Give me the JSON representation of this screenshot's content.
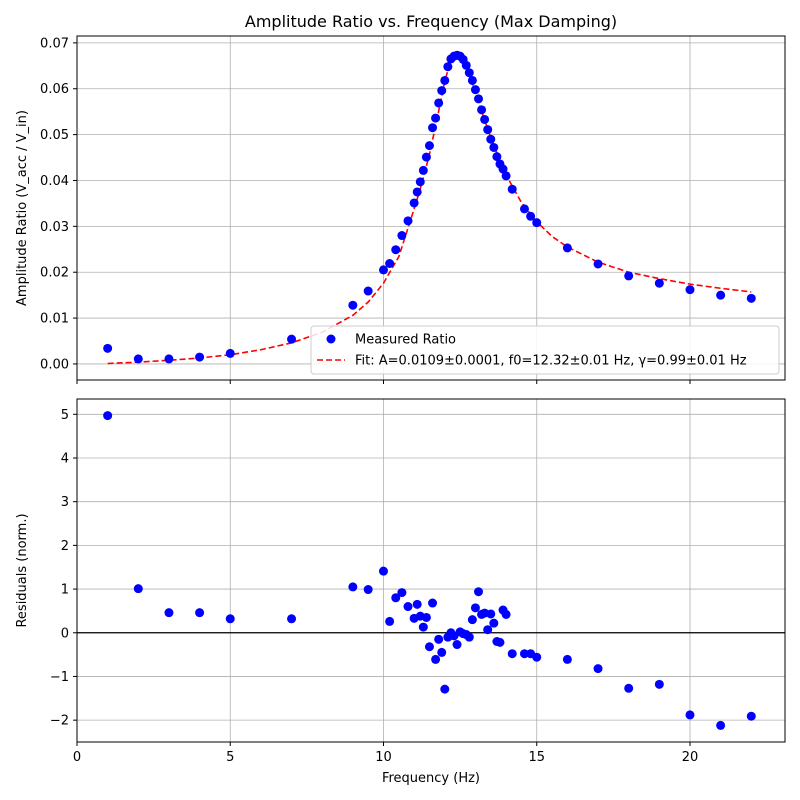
{
  "chart_data": [
    {
      "type": "scatter",
      "title": "Amplitude Ratio vs. Frequency (Max Damping)",
      "xlabel": "",
      "ylabel": "Amplitude Ratio (V_acc / V_in)",
      "xlim": [
        0,
        23.1
      ],
      "ylim": [
        -0.0035,
        0.0715
      ],
      "grid": true,
      "legend_position": "lower-right",
      "x_ticks": [
        0,
        5,
        10,
        15,
        20
      ],
      "x_tick_labels": [
        "",
        "",
        "",
        "",
        ""
      ],
      "y_ticks": [
        0.0,
        0.01,
        0.02,
        0.03,
        0.04,
        0.05,
        0.06,
        0.07
      ],
      "y_tick_labels": [
        "0.00",
        "0.01",
        "0.02",
        "0.03",
        "0.04",
        "0.05",
        "0.06",
        "0.07"
      ],
      "series": [
        {
          "name": "Measured Ratio",
          "kind": "points",
          "color": "#0000ff",
          "x": [
            1,
            2,
            3,
            4,
            5,
            7,
            9,
            9.5,
            10,
            10.2,
            10.4,
            10.6,
            10.8,
            11,
            11.1,
            11.2,
            11.3,
            11.4,
            11.5,
            11.6,
            11.7,
            11.8,
            11.9,
            12,
            12.1,
            12.2,
            12.3,
            12.4,
            12.5,
            12.6,
            12.7,
            12.8,
            12.9,
            13,
            13.1,
            13.2,
            13.3,
            13.4,
            13.5,
            13.6,
            13.7,
            13.8,
            13.9,
            14,
            14.2,
            14.6,
            14.8,
            15,
            16,
            17,
            18,
            19,
            20,
            21,
            22
          ],
          "y": [
            0.0034,
            0.0011,
            0.0011,
            0.0015,
            0.0023,
            0.0054,
            0.0128,
            0.0159,
            0.0205,
            0.0219,
            0.0249,
            0.028,
            0.0312,
            0.0351,
            0.0375,
            0.0397,
            0.0422,
            0.0451,
            0.0476,
            0.0515,
            0.0536,
            0.0569,
            0.0596,
            0.0618,
            0.0648,
            0.0665,
            0.0671,
            0.0673,
            0.0671,
            0.0664,
            0.0651,
            0.0635,
            0.0618,
            0.0598,
            0.0578,
            0.0554,
            0.0533,
            0.0511,
            0.049,
            0.0472,
            0.0452,
            0.0436,
            0.0425,
            0.041,
            0.0381,
            0.0338,
            0.0322,
            0.0308,
            0.0253,
            0.0218,
            0.0192,
            0.0176,
            0.0162,
            0.015,
            0.0143
          ]
        },
        {
          "name": "Fit: A=0.0109±0.0001, f0=12.32±0.01 Hz, γ=0.99±0.01 Hz",
          "kind": "dashed-line",
          "color": "#ff0000",
          "x": [
            1,
            2,
            3,
            4,
            5,
            6,
            7,
            8,
            9,
            9.5,
            10,
            10.5,
            11,
            11.25,
            11.5,
            11.75,
            12,
            12.15,
            12.32,
            12.5,
            12.75,
            13,
            13.25,
            13.5,
            13.75,
            14,
            14.5,
            15,
            15.5,
            16,
            17,
            18,
            19,
            20,
            21,
            22
          ],
          "y": [
            0.0001,
            0.0004,
            0.0008,
            0.0013,
            0.002,
            0.0031,
            0.0046,
            0.0069,
            0.0106,
            0.0135,
            0.0176,
            0.0234,
            0.0338,
            0.0393,
            0.0457,
            0.0535,
            0.0616,
            0.0652,
            0.0672,
            0.0663,
            0.0638,
            0.0593,
            0.0541,
            0.0494,
            0.0451,
            0.0412,
            0.0352,
            0.031,
            0.0278,
            0.0255,
            0.0222,
            0.02,
            0.0186,
            0.0174,
            0.0165,
            0.0157
          ]
        }
      ]
    },
    {
      "type": "scatter",
      "title": "",
      "xlabel": "Frequency (Hz)",
      "ylabel": "Residuals (norm.)",
      "xlim": [
        0,
        23.1
      ],
      "ylim": [
        -2.5,
        5.35
      ],
      "grid": true,
      "zero_line": true,
      "x_ticks": [
        0,
        5,
        10,
        15,
        20
      ],
      "x_tick_labels": [
        "0",
        "5",
        "10",
        "15",
        "20"
      ],
      "y_ticks": [
        -2,
        -1,
        0,
        1,
        2,
        3,
        4,
        5
      ],
      "y_tick_labels": [
        "−2",
        "−1",
        "0",
        "1",
        "2",
        "3",
        "4",
        "5"
      ],
      "series": [
        {
          "name": "",
          "kind": "points",
          "color": "#0000ff",
          "x": [
            1,
            2,
            3,
            4,
            5,
            7,
            9,
            9.5,
            10,
            10.2,
            10.4,
            10.6,
            10.8,
            11,
            11.1,
            11.2,
            11.3,
            11.4,
            11.5,
            11.6,
            11.7,
            11.8,
            11.9,
            12,
            12.1,
            12.2,
            12.3,
            12.4,
            12.5,
            12.6,
            12.7,
            12.8,
            12.9,
            13,
            13.1,
            13.2,
            13.3,
            13.4,
            13.5,
            13.6,
            13.7,
            13.8,
            13.9,
            14,
            14.2,
            14.6,
            14.8,
            15,
            16,
            17,
            18,
            19,
            20,
            21,
            22
          ],
          "y": [
            4.97,
            1.01,
            0.46,
            0.46,
            0.32,
            0.32,
            1.05,
            0.99,
            1.41,
            0.26,
            0.8,
            0.92,
            0.6,
            0.33,
            0.65,
            0.38,
            0.13,
            0.35,
            -0.32,
            0.68,
            -0.61,
            -0.15,
            -0.45,
            -1.29,
            -0.1,
            0.0,
            -0.07,
            -0.27,
            0.02,
            -0.02,
            -0.04,
            -0.1,
            0.3,
            0.57,
            0.94,
            0.42,
            0.45,
            0.07,
            0.43,
            0.22,
            -0.2,
            -0.22,
            0.52,
            0.42,
            -0.48,
            -0.48,
            -0.48,
            -0.56,
            -0.61,
            -0.82,
            -1.27,
            -1.18,
            -1.88,
            -2.12,
            -1.91
          ]
        }
      ]
    }
  ]
}
